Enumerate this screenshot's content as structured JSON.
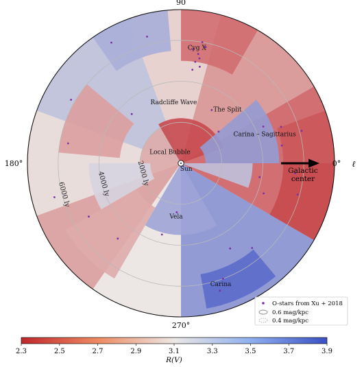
{
  "chart_data": {
    "type": "heatmap",
    "projection": "polar top-down map of Galactic plane, Sun at centre",
    "color_variable": "R(V)",
    "colorbar": {
      "label": "R(V)",
      "ticks": [
        "2.3",
        "2.5",
        "2.7",
        "2.9",
        "3.1",
        "3.3",
        "3.5",
        "3.7",
        "3.9"
      ],
      "range": [
        2.3,
        3.9
      ],
      "colors": {
        "low": "#c0262c",
        "mid": "#ece7e4",
        "high": "#3a4fc4"
      }
    },
    "longitude_labels": {
      "l0": "0°",
      "l90": "90",
      "l180": "180°",
      "l270": "270°",
      "axis": "ℓ"
    },
    "distance_rings": [
      {
        "label": "2000 ly",
        "radius_ly": 2000
      },
      {
        "label": "4000 ly",
        "radius_ly": 4000
      },
      {
        "label": "6000 ly",
        "radius_ly": 6000
      }
    ],
    "max_radius_ly": 7500,
    "annotations": [
      {
        "text": "Cyg X",
        "l_deg": 82,
        "r_ly": 5600
      },
      {
        "text": "Radcliffe Wave",
        "l_deg": 97,
        "r_ly": 2900
      },
      {
        "text": "The Split",
        "l_deg": 48,
        "r_ly": 3400
      },
      {
        "text": "Carina – Sagittarius",
        "l_deg": 18,
        "r_ly": 4300
      },
      {
        "text": "Local Bubble",
        "l_deg": 140,
        "r_ly": 700
      },
      {
        "text": "Sun",
        "l_deg": 305,
        "r_ly": 450
      },
      {
        "text": "Vela",
        "l_deg": 265,
        "r_ly": 2700
      },
      {
        "text": "Carina",
        "l_deg": 288,
        "r_ly": 6300
      }
    ],
    "arrow_label": "Galactic\ncenter",
    "legend": [
      {
        "label": "O-stars from Xu + 2018",
        "marker": "dot",
        "color": "#7b2fa6"
      },
      {
        "label": "0.6 mag/kpc",
        "marker": "ellipse-solid",
        "color": "#888888"
      },
      {
        "label": "0.4 mag/kpc",
        "marker": "ellipse-dotted",
        "color": "#aaaaaa"
      }
    ],
    "legend_position": "bottom-right",
    "sectors": [
      {
        "l": [
          330,
          30
        ],
        "r": [
          0,
          7500
        ],
        "rv": 2.55
      },
      {
        "l": [
          30,
          75
        ],
        "r": [
          0,
          7500
        ],
        "rv": 2.75
      },
      {
        "l": [
          75,
          110
        ],
        "r": [
          0,
          7500
        ],
        "rv": 3.0
      },
      {
        "l": [
          110,
          160
        ],
        "r": [
          0,
          7500
        ],
        "rv": 3.3
      },
      {
        "l": [
          160,
          200
        ],
        "r": [
          0,
          7500
        ],
        "rv": 3.05
      },
      {
        "l": [
          200,
          235
        ],
        "r": [
          0,
          7500
        ],
        "rv": 2.8
      },
      {
        "l": [
          235,
          270
        ],
        "r": [
          0,
          7500
        ],
        "rv": 3.1
      },
      {
        "l": [
          270,
          330
        ],
        "r": [
          0,
          7500
        ],
        "rv": 3.55
      },
      {
        "l": [
          20,
          120
        ],
        "r": [
          0,
          2200
        ],
        "rv": 2.45
      },
      {
        "l": [
          120,
          200
        ],
        "r": [
          0,
          2000
        ],
        "rv": 2.85
      },
      {
        "l": [
          0,
          40
        ],
        "r": [
          1200,
          4800
        ],
        "rv": 3.5
      },
      {
        "l": [
          340,
          360
        ],
        "r": [
          0,
          3500
        ],
        "rv": 3.3
      },
      {
        "l": [
          330,
          360
        ],
        "r": [
          5000,
          7500
        ],
        "rv": 2.45
      },
      {
        "l": [
          0,
          20
        ],
        "r": [
          5000,
          7500
        ],
        "rv": 2.5
      },
      {
        "l": [
          60,
          90
        ],
        "r": [
          5000,
          7500
        ],
        "rv": 2.6
      },
      {
        "l": [
          95,
          125
        ],
        "r": [
          5500,
          7500
        ],
        "rv": 3.4
      },
      {
        "l": [
          140,
          175
        ],
        "r": [
          3000,
          6000
        ],
        "rv": 2.8
      },
      {
        "l": [
          240,
          300
        ],
        "r": [
          0,
          3500
        ],
        "rv": 3.45
      },
      {
        "l": [
          280,
          310
        ],
        "r": [
          5500,
          7200
        ],
        "rv": 3.75
      },
      {
        "l": [
          210,
          240
        ],
        "r": [
          2500,
          6500
        ],
        "rv": 2.85
      },
      {
        "l": [
          180,
          210
        ],
        "r": [
          1500,
          4500
        ],
        "rv": 3.2
      }
    ],
    "o_stars": [
      {
        "l": 80,
        "r": 5200
      },
      {
        "l": 81,
        "r": 5400
      },
      {
        "l": 82,
        "r": 5000
      },
      {
        "l": 79,
        "r": 4800
      },
      {
        "l": 84,
        "r": 5600
      },
      {
        "l": 83,
        "r": 4600
      },
      {
        "l": 80,
        "r": 6000
      },
      {
        "l": 78,
        "r": 5800
      },
      {
        "l": 24,
        "r": 4400
      },
      {
        "l": 20,
        "r": 5200
      },
      {
        "l": 15,
        "r": 6100
      },
      {
        "l": 10,
        "r": 5000
      },
      {
        "l": 355,
        "r": 5600
      },
      {
        "l": 345,
        "r": 5900
      },
      {
        "l": 340,
        "r": 4300
      },
      {
        "l": 350,
        "r": 3900
      },
      {
        "l": 290,
        "r": 6000
      },
      {
        "l": 287,
        "r": 6500
      },
      {
        "l": 300,
        "r": 4800
      },
      {
        "l": 310,
        "r": 5400
      },
      {
        "l": 265,
        "r": 2400
      },
      {
        "l": 255,
        "r": 3600
      },
      {
        "l": 230,
        "r": 4800
      },
      {
        "l": 210,
        "r": 5200
      },
      {
        "l": 195,
        "r": 6400
      },
      {
        "l": 170,
        "r": 5600
      },
      {
        "l": 150,
        "r": 6200
      },
      {
        "l": 120,
        "r": 6800
      },
      {
        "l": 105,
        "r": 6400
      },
      {
        "l": 135,
        "r": 3400
      },
      {
        "l": 60,
        "r": 3000
      },
      {
        "l": 40,
        "r": 2400
      }
    ]
  }
}
